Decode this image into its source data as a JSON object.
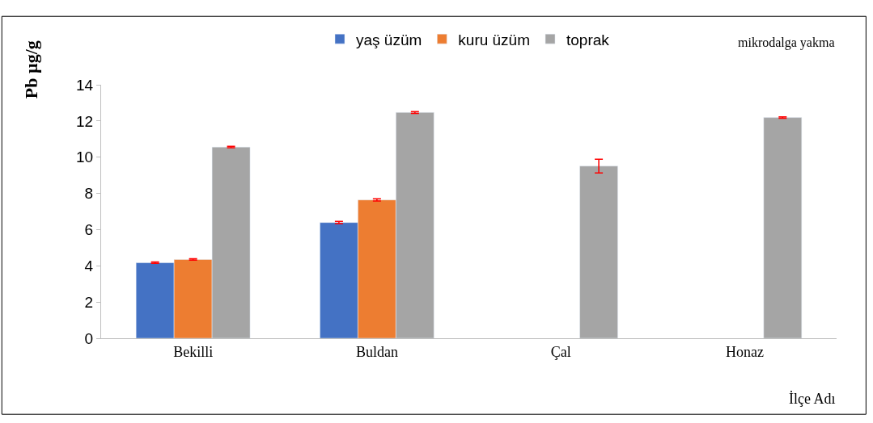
{
  "chart_data": {
    "type": "bar",
    "categories": [
      "Bekilli",
      "Buldan",
      "Çal",
      "Honaz"
    ],
    "xlabel": "İlçe Adı",
    "ylabel": "Pb µg/g",
    "annotations": [
      "mikrodalga yakma"
    ],
    "ylim": [
      0,
      14
    ],
    "yticks": [
      0,
      2,
      4,
      6,
      8,
      10,
      12,
      14
    ],
    "legend": "top",
    "series": [
      {
        "name": "yaş üzüm",
        "color": "#4472c4",
        "values": [
          4.17,
          6.39,
          null,
          null
        ],
        "errors": [
          0.04,
          0.06,
          null,
          null
        ]
      },
      {
        "name": "kuru üzüm",
        "color": "#ed7d31",
        "values": [
          4.35,
          7.64,
          null,
          null
        ],
        "errors": [
          0.04,
          0.06,
          null,
          null
        ]
      },
      {
        "name": "toprak",
        "color": "#a5a5a5",
        "values": [
          10.56,
          12.47,
          9.51,
          12.19
        ],
        "errors": [
          0.04,
          0.05,
          0.38,
          0.04
        ]
      }
    ]
  }
}
